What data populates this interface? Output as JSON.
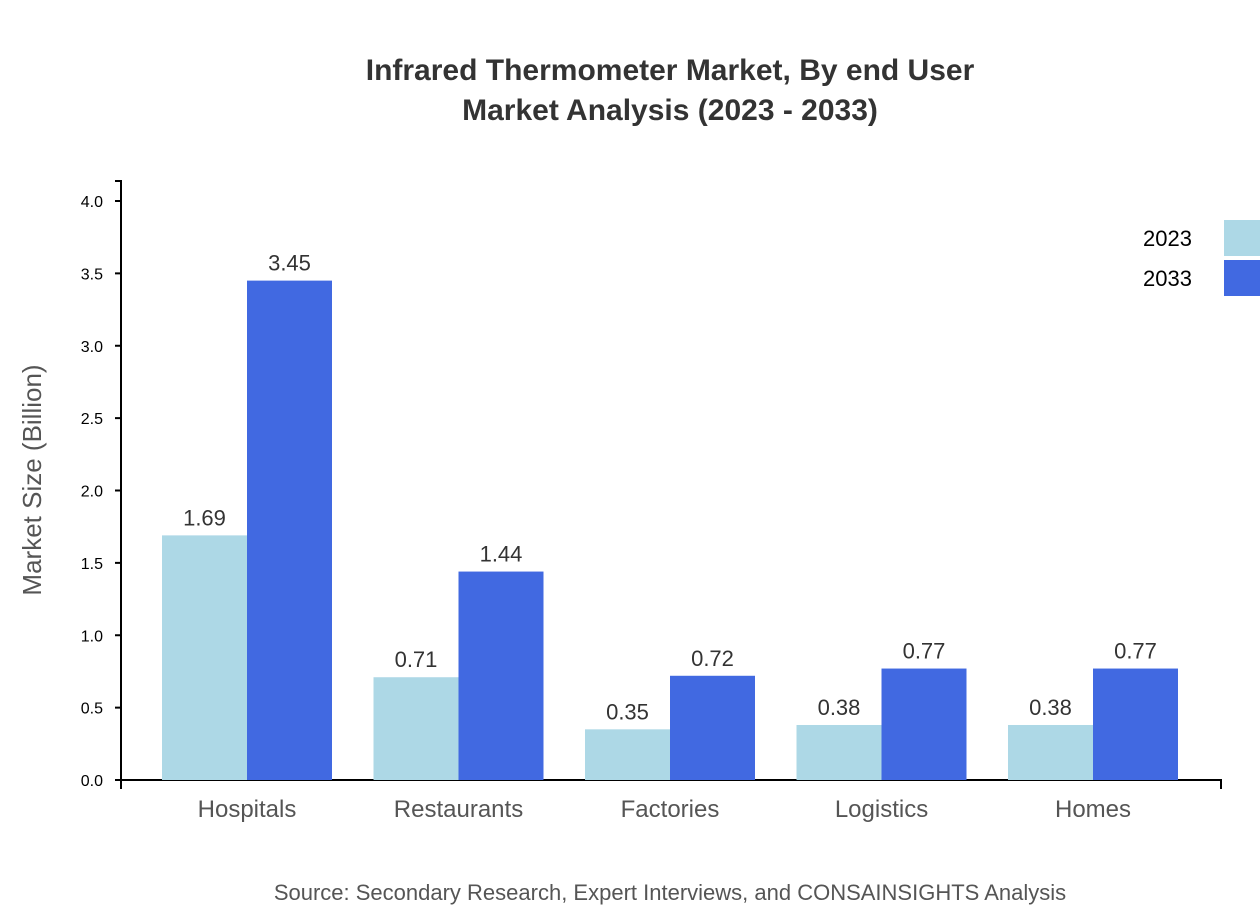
{
  "chart_data": {
    "type": "bar",
    "title": [
      "Infrared Thermometer Market, By end User",
      "Market Analysis (2023 - 2033)"
    ],
    "xlabel": "",
    "ylabel": "Market Size (Billion)",
    "ylim": [
      0,
      4.0
    ],
    "yticks": [
      "0.0",
      "0.5",
      "1.0",
      "1.5",
      "2.0",
      "2.5",
      "3.0",
      "3.5",
      "4.0"
    ],
    "categories": [
      "Hospitals",
      "Restaurants",
      "Factories",
      "Logistics",
      "Homes"
    ],
    "series": [
      {
        "name": "2023",
        "color": "#add8e6",
        "values": [
          1.69,
          0.71,
          0.35,
          0.38,
          0.38
        ]
      },
      {
        "name": "2033",
        "color": "#4169e1",
        "values": [
          3.45,
          1.44,
          0.72,
          0.77,
          0.77
        ]
      }
    ],
    "legend": "top-right",
    "grid": false,
    "source": "Source: Secondary Research, Expert Interviews, and CONSAINSIGHTS Analysis"
  }
}
